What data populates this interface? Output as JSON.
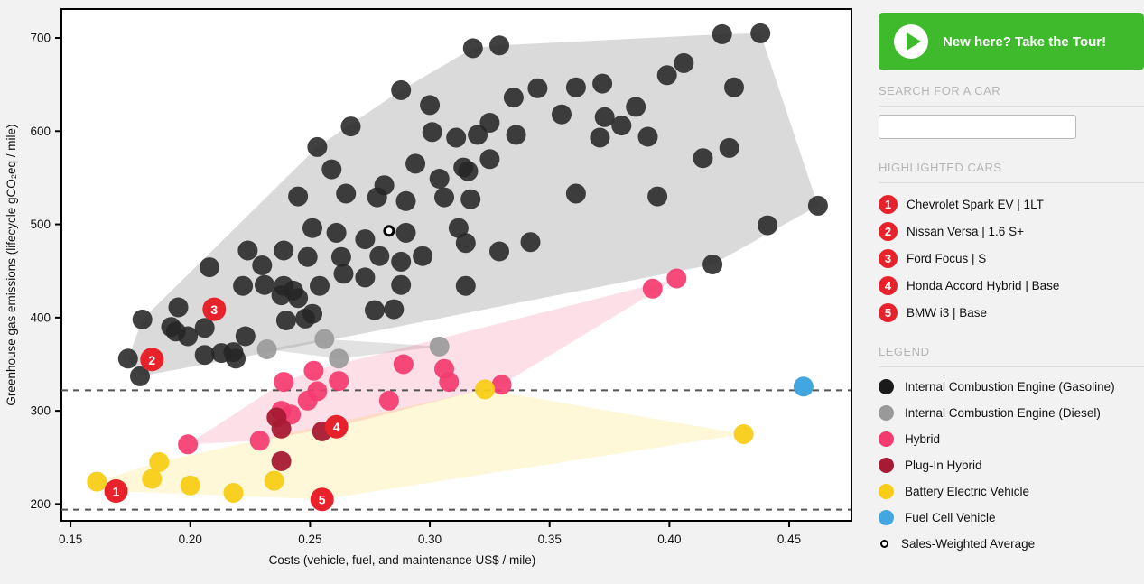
{
  "sidebar": {
    "tour_button": {
      "label": "New here? Take the Tour!",
      "color": "#3eba2c"
    },
    "search": {
      "header": "SEARCH FOR A CAR",
      "value": "",
      "placeholder": ""
    },
    "highlighted": {
      "header": "HIGHLIGHTED CARS",
      "badge_color": "#e8222a",
      "items": [
        {
          "number": "1",
          "label": "Chevrolet Spark EV | 1LT"
        },
        {
          "number": "2",
          "label": "Nissan Versa | 1.6 S+"
        },
        {
          "number": "3",
          "label": "Ford Focus | S"
        },
        {
          "number": "4",
          "label": "Honda Accord Hybrid | Base"
        },
        {
          "number": "5",
          "label": "BMW i3 | Base"
        }
      ]
    },
    "legend": {
      "header": "LEGEND",
      "items": [
        {
          "label": "Internal Combustion Engine (Gasoline)",
          "color": "#1a1a1a",
          "type": "dot"
        },
        {
          "label": "Internal Combustion Engine (Diesel)",
          "color": "#999999",
          "type": "dot"
        },
        {
          "label": "Hybrid",
          "color": "#f43b6f",
          "type": "dot"
        },
        {
          "label": "Plug-In Hybrid",
          "color": "#a81a33",
          "type": "dot"
        },
        {
          "label": "Battery Electric Vehicle",
          "color": "#f8cd17",
          "type": "dot"
        },
        {
          "label": "Fuel Cell Vehicle",
          "color": "#42a7e0",
          "type": "dot"
        },
        {
          "label": "Sales-Weighted Average",
          "color": "#ffffff",
          "type": "ring"
        }
      ]
    }
  },
  "chart_data": {
    "type": "scatter",
    "title": "",
    "xlabel": "Costs (vehicle, fuel, and maintenance US$ / mile)",
    "ylabel": "Greenhouse gas emissions (lifecycle gCO₂eq / mile)",
    "xlim": [
      0.1462,
      0.476
    ],
    "ylim": [
      182,
      731
    ],
    "xticks": [
      "0.15",
      "0.20",
      "0.25",
      "0.30",
      "0.35",
      "0.40",
      "0.45"
    ],
    "yticks": [
      200,
      300,
      400,
      500,
      600,
      700
    ],
    "grid": false,
    "reference_lines_y": [
      322,
      194
    ],
    "series": [
      {
        "name": "Internal Combustion Engine (Gasoline)",
        "color": "#262626",
        "opacity": 0.88,
        "hull_fill": "rgba(0,0,0,0.145)",
        "points": [
          [
            0.288,
            644
          ],
          [
            0.3,
            628
          ],
          [
            0.267,
            605
          ],
          [
            0.301,
            599
          ],
          [
            0.253,
            583
          ],
          [
            0.311,
            593
          ],
          [
            0.259,
            559
          ],
          [
            0.294,
            565
          ],
          [
            0.304,
            549
          ],
          [
            0.281,
            542
          ],
          [
            0.245,
            530
          ],
          [
            0.265,
            533
          ],
          [
            0.278,
            529
          ],
          [
            0.29,
            525
          ],
          [
            0.306,
            529
          ],
          [
            0.251,
            496
          ],
          [
            0.261,
            491
          ],
          [
            0.273,
            484
          ],
          [
            0.29,
            491
          ],
          [
            0.312,
            496
          ],
          [
            0.224,
            472
          ],
          [
            0.239,
            472
          ],
          [
            0.23,
            456
          ],
          [
            0.249,
            465
          ],
          [
            0.263,
            465
          ],
          [
            0.208,
            454
          ],
          [
            0.279,
            466
          ],
          [
            0.288,
            460
          ],
          [
            0.297,
            466
          ],
          [
            0.264,
            447
          ],
          [
            0.273,
            443
          ],
          [
            0.318,
            689
          ],
          [
            0.329,
            692
          ],
          [
            0.422,
            704
          ],
          [
            0.438,
            705
          ],
          [
            0.406,
            673
          ],
          [
            0.399,
            660
          ],
          [
            0.427,
            647
          ],
          [
            0.335,
            636
          ],
          [
            0.345,
            646
          ],
          [
            0.361,
            647
          ],
          [
            0.372,
            651
          ],
          [
            0.386,
            626
          ],
          [
            0.355,
            618
          ],
          [
            0.373,
            615
          ],
          [
            0.38,
            606
          ],
          [
            0.325,
            609
          ],
          [
            0.32,
            596
          ],
          [
            0.336,
            596
          ],
          [
            0.371,
            593
          ],
          [
            0.391,
            594
          ],
          [
            0.414,
            571
          ],
          [
            0.425,
            582
          ],
          [
            0.325,
            570
          ],
          [
            0.316,
            557
          ],
          [
            0.314,
            561
          ],
          [
            0.317,
            527
          ],
          [
            0.361,
            533
          ],
          [
            0.395,
            530
          ],
          [
            0.462,
            520
          ],
          [
            0.441,
            499
          ],
          [
            0.342,
            481
          ],
          [
            0.329,
            471
          ],
          [
            0.315,
            480
          ],
          [
            0.418,
            457
          ],
          [
            0.18,
            398
          ],
          [
            0.174,
            356
          ],
          [
            0.179,
            337
          ],
          [
            0.195,
            411
          ],
          [
            0.192,
            390
          ],
          [
            0.194,
            385
          ],
          [
            0.199,
            380
          ],
          [
            0.206,
            389
          ],
          [
            0.206,
            360
          ],
          [
            0.213,
            362
          ],
          [
            0.219,
            356
          ],
          [
            0.222,
            434
          ],
          [
            0.231,
            435
          ],
          [
            0.223,
            380
          ],
          [
            0.239,
            434
          ],
          [
            0.238,
            424
          ],
          [
            0.243,
            429
          ],
          [
            0.245,
            421
          ],
          [
            0.251,
            404
          ],
          [
            0.254,
            434
          ],
          [
            0.24,
            397
          ],
          [
            0.248,
            399
          ],
          [
            0.277,
            408
          ],
          [
            0.285,
            409
          ],
          [
            0.288,
            435
          ],
          [
            0.218,
            363
          ],
          [
            0.315,
            434
          ]
        ]
      },
      {
        "name": "Internal Combustion Engine (Diesel)",
        "color": "#999999",
        "opacity": 0.9,
        "hull_fill": "rgba(150,150,150,0.28)",
        "points": [
          [
            0.232,
            366
          ],
          [
            0.256,
            377
          ],
          [
            0.262,
            356
          ],
          [
            0.304,
            369
          ]
        ]
      },
      {
        "name": "Hybrid",
        "color": "#f43b6f",
        "opacity": 0.92,
        "hull_fill": "rgba(244,59,111,0.16)",
        "points": [
          [
            0.199,
            264
          ],
          [
            0.229,
            268
          ],
          [
            0.238,
            300
          ],
          [
            0.242,
            296
          ],
          [
            0.249,
            311
          ],
          [
            0.253,
            321
          ],
          [
            0.2515,
            343
          ],
          [
            0.239,
            331
          ],
          [
            0.261,
            283
          ],
          [
            0.262,
            332
          ],
          [
            0.283,
            311
          ],
          [
            0.289,
            350
          ],
          [
            0.306,
            345
          ],
          [
            0.308,
            331
          ],
          [
            0.33,
            328
          ],
          [
            0.393,
            431
          ],
          [
            0.403,
            442
          ]
        ]
      },
      {
        "name": "Plug-In Hybrid",
        "color": "#a81a33",
        "opacity": 0.95,
        "hull_fill": null,
        "points": [
          [
            0.236,
            293
          ],
          [
            0.238,
            281
          ],
          [
            0.255,
            278
          ],
          [
            0.238,
            246
          ]
        ]
      },
      {
        "name": "Battery Electric Vehicle",
        "color": "#f8cd17",
        "opacity": 0.95,
        "hull_fill": "rgba(248,205,23,0.17)",
        "points": [
          [
            0.161,
            224
          ],
          [
            0.169,
            214
          ],
          [
            0.184,
            227
          ],
          [
            0.187,
            245
          ],
          [
            0.2,
            220
          ],
          [
            0.218,
            212
          ],
          [
            0.235,
            225
          ],
          [
            0.255,
            205
          ],
          [
            0.323,
            323
          ],
          [
            0.431,
            275
          ]
        ]
      },
      {
        "name": "Fuel Cell Vehicle",
        "color": "#42a7e0",
        "opacity": 1,
        "hull_fill": null,
        "points": [
          [
            0.456,
            326
          ]
        ]
      }
    ],
    "sales_weighted_average": {
      "label": "Sales-Weighted Average",
      "x": 0.283,
      "y": 493
    },
    "highlight_markers": {
      "color": "#e8222a",
      "items": [
        {
          "number": "1",
          "x": 0.169,
          "y": 214
        },
        {
          "number": "2",
          "x": 0.184,
          "y": 355
        },
        {
          "number": "3",
          "x": 0.21,
          "y": 409
        },
        {
          "number": "4",
          "x": 0.261,
          "y": 283
        },
        {
          "number": "5",
          "x": 0.255,
          "y": 205
        }
      ]
    }
  }
}
